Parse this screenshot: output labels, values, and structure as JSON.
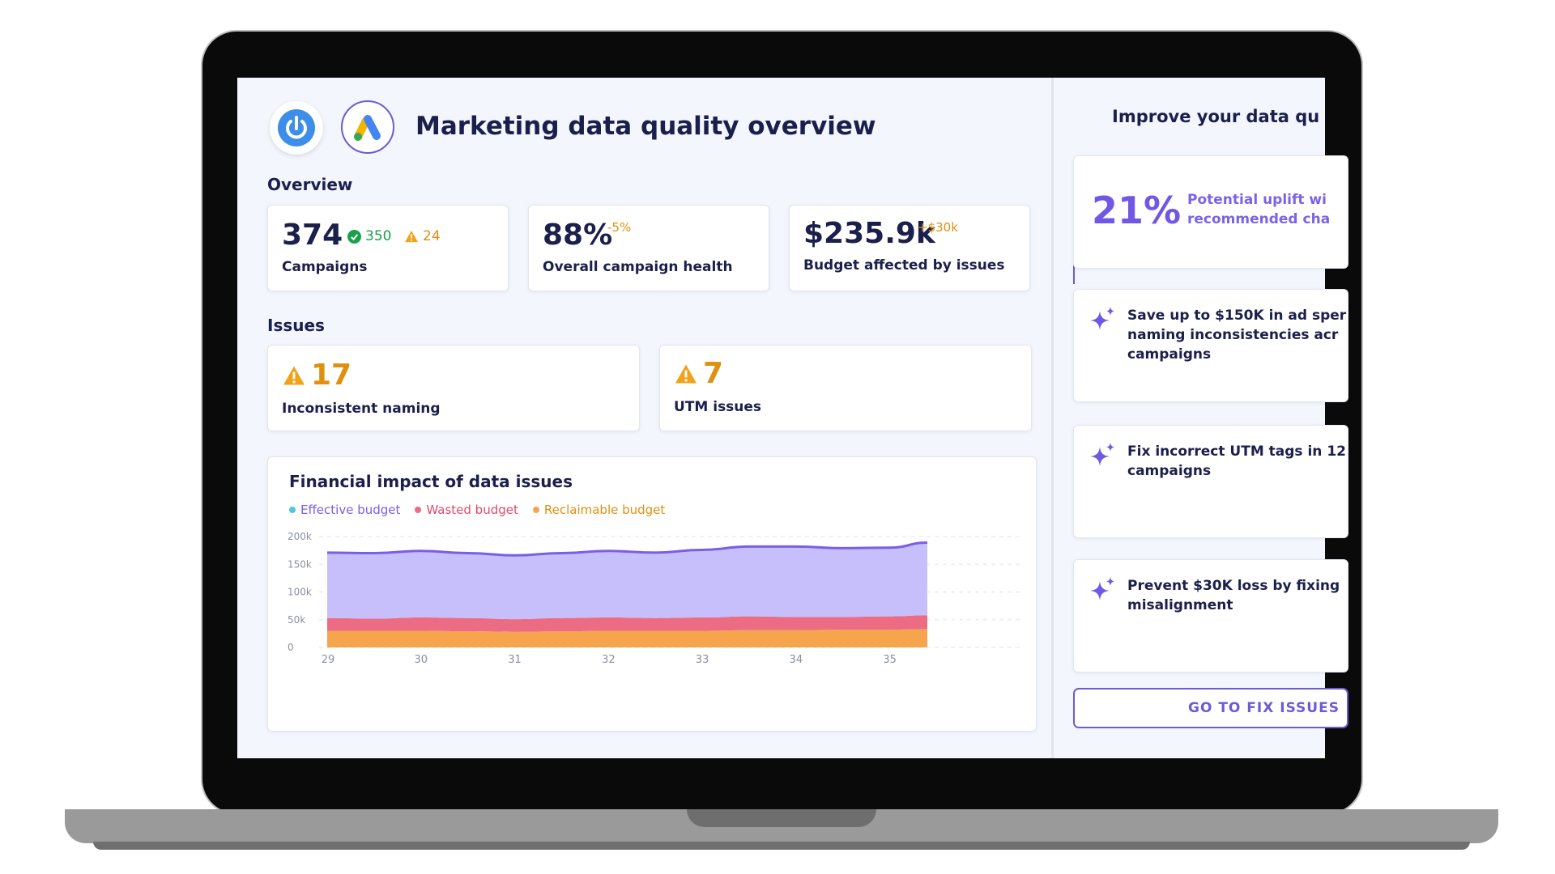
{
  "header": {
    "title": "Marketing data quality overview"
  },
  "overview": {
    "label": "Overview",
    "campaigns": {
      "value": "374",
      "ok_count": "350",
      "warn_count": "24",
      "label": "Campaigns"
    },
    "health": {
      "value": "88%",
      "delta": "-5%",
      "label": "Overall campaign health"
    },
    "budget": {
      "value": "$235.9k",
      "delta": "+$30k",
      "label": "Budget affected by issues"
    }
  },
  "issues": {
    "label": "Issues",
    "items": [
      {
        "count": "17",
        "label": "Inconsistent naming"
      },
      {
        "count": "7",
        "label": "UTM issues"
      }
    ]
  },
  "chart_data": {
    "type": "area",
    "title": "Financial impact of data issues",
    "xlabel": "",
    "ylabel": "",
    "x": [
      29,
      29.5,
      30,
      30.5,
      31,
      31.5,
      32,
      32.5,
      33,
      33.5,
      34,
      34.5,
      35,
      35.4
    ],
    "x_ticks": [
      "29",
      "30",
      "31",
      "32",
      "33",
      "34",
      "35"
    ],
    "y_ticks": [
      "0",
      "50k",
      "100k",
      "150k",
      "200k"
    ],
    "ylim": [
      0,
      200000
    ],
    "stacked": true,
    "grid": true,
    "legend_position": "top-left",
    "series": [
      {
        "name": "Reclaimable budget",
        "color": "#f7a54c",
        "values": [
          30000,
          30000,
          30000,
          29000,
          28000,
          29000,
          30000,
          30000,
          30000,
          31000,
          31000,
          32000,
          32000,
          33000
        ]
      },
      {
        "name": "Wasted budget",
        "color": "#ec6c84",
        "values": [
          23000,
          22000,
          24000,
          24000,
          23000,
          24000,
          24000,
          23000,
          24000,
          25000,
          24000,
          23000,
          24000,
          25000
        ]
      },
      {
        "name": "Effective budget",
        "color": "#c7bffc",
        "line_color": "#7b5ee8",
        "values": [
          118000,
          118000,
          120000,
          117000,
          115000,
          117000,
          120000,
          118000,
          122000,
          126000,
          127000,
          124000,
          124000,
          131000
        ]
      }
    ],
    "legend_colors": {
      "Effective budget": "#4cc9e0",
      "Wasted budget": "#ec6c84",
      "Reclaimable budget": "#f7a54c"
    },
    "legend_text_colors": {
      "Effective budget": "#7b5ee8",
      "Wasted budget": "#e5486a",
      "Reclaimable budget": "#e0900f"
    }
  },
  "sidebar": {
    "title": "Improve your data qu",
    "uplift": {
      "percent": "21%",
      "text": "Potential uplift wi\nrecommended cha"
    },
    "recommendations": [
      {
        "text": "Save up to $150K in ad sper\nnaming inconsistencies acr\ncampaigns"
      },
      {
        "text": "Fix incorrect UTM tags in 12\ncampaigns"
      },
      {
        "text": "Prevent $30K loss by fixing\nmisalignment"
      }
    ],
    "button_label": "GO TO FIX ISSUES"
  },
  "colors": {
    "accent": "#6b5bd6",
    "ok": "#1aa04a",
    "warn": "#e0900f",
    "text_dark": "#1b1f4b"
  },
  "icons": {
    "logo_left": "power-logo-icon",
    "logo_right": "google-ads-logo-icon",
    "check": "check-circle-icon",
    "warning": "warning-triangle-icon",
    "sparkle": "sparkle-icon"
  }
}
